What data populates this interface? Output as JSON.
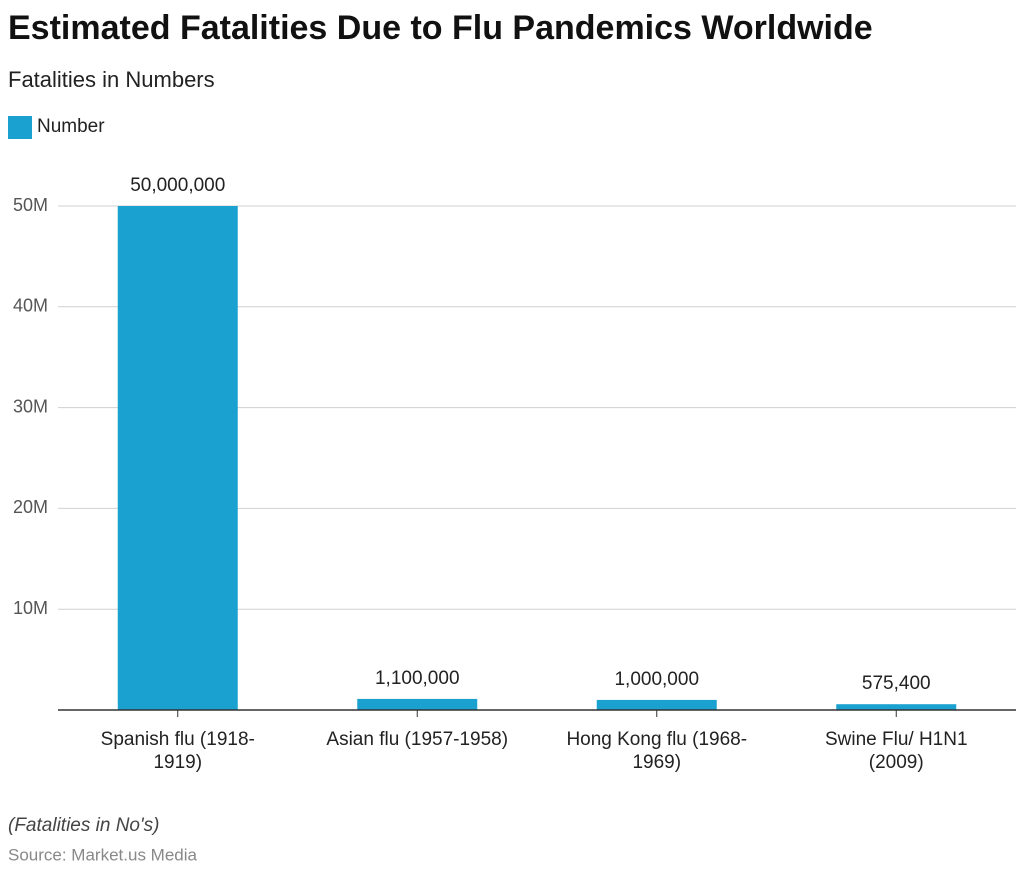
{
  "chart_data": {
    "type": "bar",
    "title": "Estimated Fatalities Due to Flu Pandemics Worldwide",
    "subtitle": "Fatalities in Numbers",
    "categories": [
      "Spanish flu (1918-1919)",
      "Asian flu (1957-1958)",
      "Hong Kong flu (1968-1969)",
      "Swine Flu/ H1N1 (2009)"
    ],
    "series": [
      {
        "name": "Number",
        "color": "#1ba1cf",
        "values": [
          50000000,
          1100000,
          1000000,
          575400
        ],
        "value_labels": [
          "50,000,000",
          "1,100,000",
          "1,000,000",
          "575,400"
        ]
      }
    ],
    "ylim": [
      0,
      50000000
    ],
    "yticks": [
      {
        "value": 10000000,
        "label": "10M"
      },
      {
        "value": 20000000,
        "label": "20M"
      },
      {
        "value": 30000000,
        "label": "30M"
      },
      {
        "value": 40000000,
        "label": "40M"
      },
      {
        "value": 50000000,
        "label": "50M"
      }
    ],
    "grid": true,
    "legend": "top-left",
    "note": "(Fatalities in No's)",
    "source": "Source: Market.us Media"
  }
}
